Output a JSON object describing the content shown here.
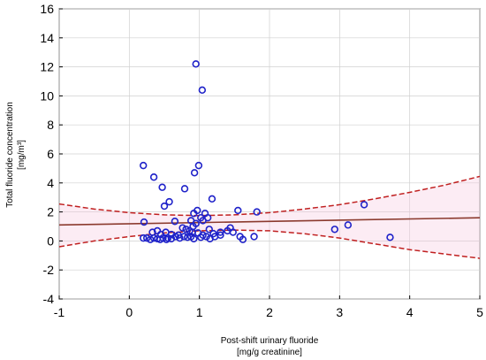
{
  "chart_data": {
    "type": "scatter",
    "xlabel": "Post-shift urinary fluoride",
    "xlabel_unit": "[mg/g creatinine]",
    "ylabel": "Total fluoride concentration",
    "ylabel_unit": "[mg/m³]",
    "xlim": [
      -1,
      5
    ],
    "ylim": [
      -4,
      16
    ],
    "xticks": [
      -1,
      0,
      1,
      2,
      3,
      4,
      5
    ],
    "yticks": [
      -4,
      -2,
      0,
      2,
      4,
      6,
      8,
      10,
      12,
      14,
      16
    ],
    "grid": true,
    "colors": {
      "points": "#1f22c9",
      "fit": "#8b3a2e",
      "ci": "#c02020",
      "band": "#f7c8e0",
      "grid": "#d0d0d0"
    },
    "points": [
      {
        "x": 0.95,
        "y": 12.2
      },
      {
        "x": 1.04,
        "y": 10.4
      },
      {
        "x": 0.2,
        "y": 5.2
      },
      {
        "x": 0.99,
        "y": 5.2
      },
      {
        "x": 0.93,
        "y": 4.7
      },
      {
        "x": 0.35,
        "y": 4.4
      },
      {
        "x": 0.47,
        "y": 3.7
      },
      {
        "x": 0.79,
        "y": 3.6
      },
      {
        "x": 1.18,
        "y": 2.9
      },
      {
        "x": 0.57,
        "y": 2.7
      },
      {
        "x": 0.5,
        "y": 2.4
      },
      {
        "x": 3.35,
        "y": 2.5
      },
      {
        "x": 1.55,
        "y": 2.1
      },
      {
        "x": 1.82,
        "y": 2.0
      },
      {
        "x": 0.92,
        "y": 1.9
      },
      {
        "x": 0.97,
        "y": 2.1
      },
      {
        "x": 1.08,
        "y": 1.9
      },
      {
        "x": 1.12,
        "y": 1.6
      },
      {
        "x": 1.02,
        "y": 1.6
      },
      {
        "x": 0.21,
        "y": 1.3
      },
      {
        "x": 0.65,
        "y": 1.35
      },
      {
        "x": 0.88,
        "y": 1.4
      },
      {
        "x": 0.91,
        "y": 1.0
      },
      {
        "x": 0.95,
        "y": 1.2
      },
      {
        "x": 1.05,
        "y": 1.4
      },
      {
        "x": 3.12,
        "y": 1.1
      },
      {
        "x": 2.93,
        "y": 0.8
      },
      {
        "x": 1.44,
        "y": 0.9
      },
      {
        "x": 1.4,
        "y": 0.7
      },
      {
        "x": 1.48,
        "y": 0.6
      },
      {
        "x": 1.14,
        "y": 0.8
      },
      {
        "x": 1.3,
        "y": 0.6
      },
      {
        "x": 0.76,
        "y": 0.9
      },
      {
        "x": 0.81,
        "y": 0.8
      },
      {
        "x": 0.86,
        "y": 0.7
      },
      {
        "x": 0.9,
        "y": 0.6
      },
      {
        "x": 0.4,
        "y": 0.7
      },
      {
        "x": 0.33,
        "y": 0.6
      },
      {
        "x": 0.52,
        "y": 0.6
      },
      {
        "x": 0.7,
        "y": 0.4
      },
      {
        "x": 0.6,
        "y": 0.45
      },
      {
        "x": 0.45,
        "y": 0.45
      },
      {
        "x": 0.2,
        "y": 0.2
      },
      {
        "x": 0.25,
        "y": 0.2
      },
      {
        "x": 0.3,
        "y": 0.1
      },
      {
        "x": 0.35,
        "y": 0.2
      },
      {
        "x": 0.4,
        "y": 0.15
      },
      {
        "x": 0.44,
        "y": 0.1
      },
      {
        "x": 0.48,
        "y": 0.2
      },
      {
        "x": 0.53,
        "y": 0.1
      },
      {
        "x": 0.55,
        "y": 0.2
      },
      {
        "x": 0.6,
        "y": 0.15
      },
      {
        "x": 0.66,
        "y": 0.3
      },
      {
        "x": 0.72,
        "y": 0.2
      },
      {
        "x": 0.78,
        "y": 0.3
      },
      {
        "x": 0.83,
        "y": 0.25
      },
      {
        "x": 0.88,
        "y": 0.3
      },
      {
        "x": 0.92,
        "y": 0.15
      },
      {
        "x": 1.02,
        "y": 0.25
      },
      {
        "x": 1.05,
        "y": 0.4
      },
      {
        "x": 1.1,
        "y": 0.3
      },
      {
        "x": 1.15,
        "y": 0.15
      },
      {
        "x": 1.22,
        "y": 0.3
      },
      {
        "x": 1.3,
        "y": 0.4
      },
      {
        "x": 1.58,
        "y": 0.3
      },
      {
        "x": 1.62,
        "y": 0.1
      },
      {
        "x": 1.78,
        "y": 0.3
      },
      {
        "x": 3.72,
        "y": 0.25
      },
      {
        "x": 0.98,
        "y": 0.55
      },
      {
        "x": 1.2,
        "y": 0.5
      }
    ],
    "fit_line": {
      "x": [
        -1,
        5
      ],
      "y": [
        1.1,
        1.6
      ]
    },
    "ci_upper": {
      "x": [
        -1,
        -0.5,
        0,
        0.5,
        1,
        1.5,
        2,
        2.5,
        3,
        3.5,
        4,
        4.5,
        5
      ],
      "y": [
        2.55,
        2.2,
        1.95,
        1.8,
        1.75,
        1.8,
        1.95,
        2.2,
        2.5,
        2.9,
        3.35,
        3.85,
        4.45
      ]
    },
    "ci_lower": {
      "x": [
        -1,
        -0.5,
        0,
        0.5,
        1,
        1.5,
        2,
        2.5,
        3,
        3.5,
        4,
        4.5,
        5
      ],
      "y": [
        -0.4,
        0.0,
        0.3,
        0.55,
        0.7,
        0.75,
        0.7,
        0.5,
        0.2,
        -0.2,
        -0.6,
        -0.9,
        -1.2
      ]
    }
  }
}
